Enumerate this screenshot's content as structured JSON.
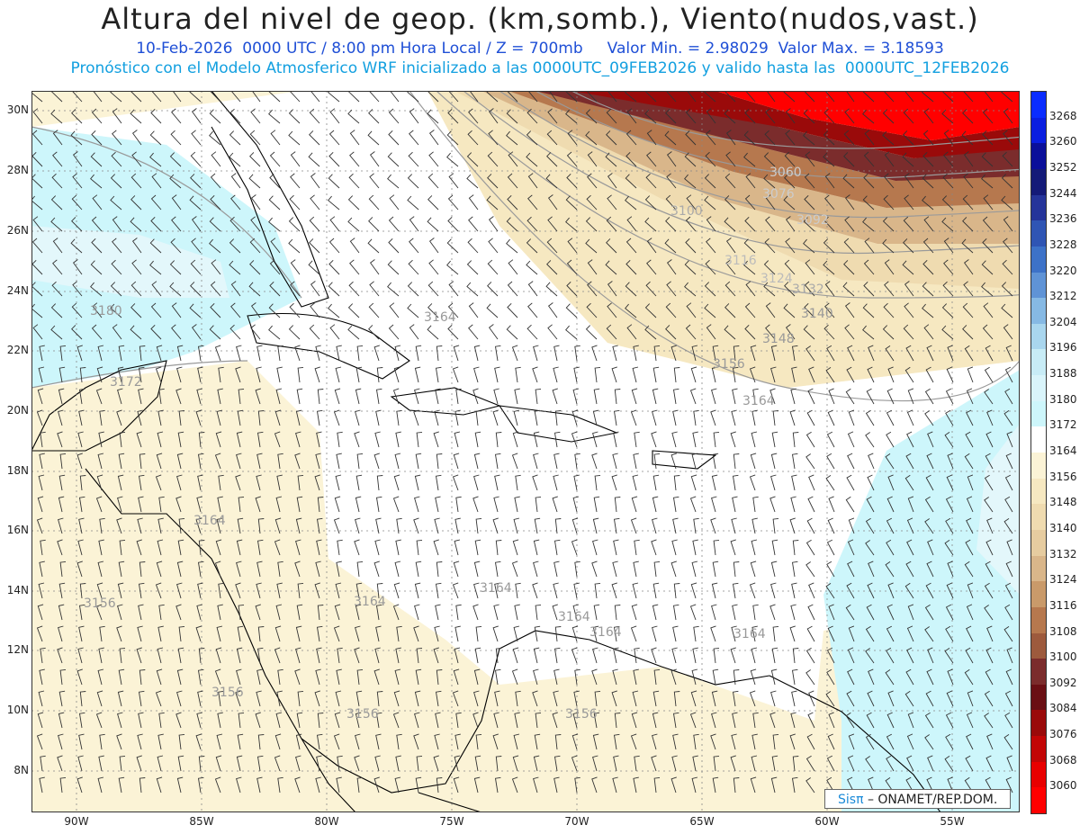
{
  "title": "Altura del nivel de geop. (km,somb.), Viento(nudos,vast.)",
  "subtitle_line1": "10-Feb-2026  0000 UTC / 8:00 pm Hora Local / Z = 700mb     Valor Min. = 2.98029  Valor Max. = 3.18593",
  "subtitle_line2": "Pronóstico con el Modelo Atmosferico WRF inicializado a las 0000UTC_09FEB2026 y valido hasta las  0000UTC_12FEB2026",
  "lat_labels": [
    "30N",
    "28N",
    "26N",
    "24N",
    "22N",
    "20N",
    "18N",
    "16N",
    "14N",
    "12N",
    "10N",
    "8N"
  ],
  "lon_labels": [
    "90W",
    "85W",
    "80W",
    "75W",
    "70W",
    "65W",
    "60W",
    "55W"
  ],
  "colorbar": {
    "levels": [
      "3268",
      "3260",
      "3252",
      "3244",
      "3236",
      "3228",
      "3220",
      "3212",
      "3204",
      "3196",
      "3188",
      "3180",
      "3172",
      "3164",
      "3156",
      "3148",
      "3140",
      "3132",
      "3124",
      "3116",
      "3108",
      "3100",
      "3092",
      "3084",
      "3076",
      "3068",
      "3060"
    ],
    "colors": [
      "#0a2cff",
      "#0a1ee0",
      "#0b0f9a",
      "#141a78",
      "#25349a",
      "#2f55b4",
      "#3d72c8",
      "#5f93d6",
      "#86b9e4",
      "#a9d6ee",
      "#c8ecf6",
      "#d9f4fa",
      "#cdf6fb",
      "#ffffff",
      "#fbf3d6",
      "#f6e8c1",
      "#efdbb0",
      "#e6cca0",
      "#d9b68a",
      "#c99a6a",
      "#b6784e",
      "#9d5a3d",
      "#7b2c2c",
      "#6a0f14",
      "#9a0a0a",
      "#c20606",
      "#e80000",
      "#ff0000"
    ]
  },
  "contour_labels": [
    "3060",
    "3076",
    "3100",
    "3092",
    "3116",
    "3124",
    "3132",
    "3140",
    "3148",
    "3156",
    "3164",
    "3164",
    "3180",
    "3172",
    "3164",
    "3156",
    "3164",
    "3164",
    "3164",
    "3164",
    "3164",
    "3156",
    "3156",
    "3156"
  ],
  "logo": {
    "brand": "Sisπ",
    "text": " – ONAMET/REP.DOM."
  }
}
